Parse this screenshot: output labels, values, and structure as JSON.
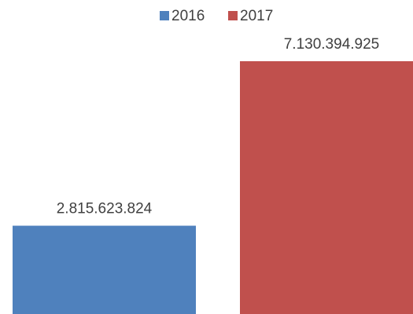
{
  "chart_data": {
    "type": "bar",
    "categories": [
      null
    ],
    "series": [
      {
        "name": "2016",
        "color": "#4f81bd",
        "values": [
          2815623824
        ],
        "value_labels": [
          "2.815.623.824"
        ]
      },
      {
        "name": "2017",
        "color": "#c0504d",
        "values": [
          7130394925
        ],
        "value_labels": [
          "7.130.394.925"
        ]
      }
    ],
    "ylim": [
      500000000,
      7500000000
    ],
    "legend": "top"
  }
}
